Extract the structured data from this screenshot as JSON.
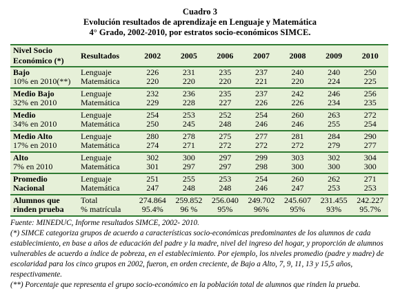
{
  "title": [
    "Cuadro 3",
    "Evolución resultados de aprendizaje en Lenguaje y Matemática",
    "4° Grado, 2002-2010, por estratos socio-económicos SIMCE."
  ],
  "table": {
    "header": {
      "label": [
        "Nivel Socio",
        "Económico (*)"
      ],
      "result": "Resultados",
      "years": [
        "2002",
        "2005",
        "2006",
        "2007",
        "2008",
        "2009",
        "2010"
      ]
    },
    "groups": [
      {
        "label": [
          "Bajo",
          "10% en 2010(**)"
        ],
        "rows": [
          {
            "result": "Lenguaje",
            "values": [
              "226",
              "231",
              "235",
              "237",
              "240",
              "240",
              "250"
            ]
          },
          {
            "result": "Matemática",
            "values": [
              "220",
              "220",
              "220",
              "221",
              "220",
              "224",
              "225"
            ]
          }
        ]
      },
      {
        "label": [
          "Medio Bajo",
          "32% en 2010"
        ],
        "rows": [
          {
            "result": "Lenguaje",
            "values": [
              "232",
              "236",
              "235",
              "237",
              "242",
              "246",
              "256"
            ]
          },
          {
            "result": "Matemática",
            "values": [
              "229",
              "228",
              "227",
              "226",
              "226",
              "234",
              "235"
            ]
          }
        ]
      },
      {
        "label": [
          "Medio",
          "34% en 2010"
        ],
        "rows": [
          {
            "result": "Lenguaje",
            "values": [
              "254",
              "253",
              "252",
              "254",
              "260",
              "263",
              "272"
            ]
          },
          {
            "result": "Matemática",
            "values": [
              "250",
              "245",
              "248",
              "246",
              "246",
              "255",
              "254"
            ]
          }
        ]
      },
      {
        "label": [
          "Medio Alto",
          "17% en 2010"
        ],
        "rows": [
          {
            "result": "Lenguaje",
            "values": [
              "280",
              "278",
              "275",
              "277",
              "281",
              "284",
              "290"
            ]
          },
          {
            "result": "Matemática",
            "values": [
              "274",
              "271",
              "272",
              "272",
              "272",
              "279",
              "277"
            ]
          }
        ]
      },
      {
        "label": [
          "Alto",
          "7% en 2010"
        ],
        "rows": [
          {
            "result": "Lenguaje",
            "values": [
              "302",
              "300",
              "297",
              "299",
              "303",
              "302",
              "304"
            ]
          },
          {
            "result": "Matemática",
            "values": [
              "301",
              "297",
              "297",
              "298",
              "300",
              "300",
              "300"
            ]
          }
        ]
      },
      {
        "label": [
          "Promedio",
          "Nacional"
        ],
        "rows": [
          {
            "result": "Lenguaje",
            "values": [
              "251",
              "255",
              "253",
              "254",
              "260",
              "262",
              "271"
            ]
          },
          {
            "result": "Matemática",
            "values": [
              "247",
              "248",
              "248",
              "246",
              "247",
              "253",
              "253"
            ]
          }
        ]
      },
      {
        "label": [
          "Alumnos que",
          "rinden prueba"
        ],
        "rows": [
          {
            "result": "Total",
            "values": [
              "274.864",
              "259.852",
              "256.040",
              "249.702",
              "245.607",
              "231.455",
              "242.227"
            ]
          },
          {
            "result": "% matrícula",
            "values": [
              "95.4%",
              "96 %",
              "95%",
              "96%",
              "95%",
              "93%",
              "95.7%"
            ]
          }
        ]
      }
    ]
  },
  "notes": [
    "Fuente: MINEDUC, Informe resultados SIMCE, 2002- 2010.",
    "(*) SIMCE categoriza grupos de acuerdo a características socio-económicas predominantes de los alumnos de cada establecimiento, en base a años de educación del padre y la madre, nivel del ingreso del hogar, y proporción de alumnos vulnerables de acuerdo a índice de pobreza, en el establecimiento. Por ejemplo, los niveles promedio (padre y madre) de escolaridad para los cinco grupos en 2002, fueron, en orden creciente, de Bajo a Alto, 7, 9, 11, 13 y 15,5 años, respectivamente.",
    "(**) Porcentaje que representa el grupo socio-económico en la población total de alumnos que rinden la prueba."
  ]
}
